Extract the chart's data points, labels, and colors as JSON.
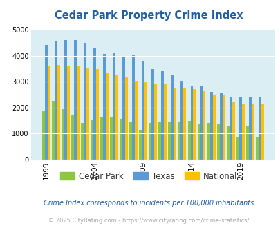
{
  "title": "Cedar Park Property Crime Index",
  "years": [
    1999,
    2000,
    2001,
    2002,
    2003,
    2004,
    2005,
    2006,
    2007,
    2008,
    2009,
    2010,
    2011,
    2012,
    2013,
    2014,
    2015,
    2016,
    2017,
    2018,
    2019,
    2020,
    2021
  ],
  "cedar_park": [
    1850,
    2250,
    1950,
    1700,
    1420,
    1530,
    1620,
    1620,
    1560,
    1460,
    1130,
    1400,
    1430,
    1470,
    1430,
    1500,
    1390,
    1400,
    1390,
    1270,
    870,
    1270,
    870
  ],
  "texas": [
    4400,
    4550,
    4600,
    4600,
    4500,
    4300,
    4080,
    4100,
    4000,
    4020,
    3800,
    3480,
    3400,
    3260,
    3040,
    2840,
    2830,
    2600,
    2580,
    2420,
    2400,
    2390,
    2390
  ],
  "national": [
    3600,
    3650,
    3620,
    3600,
    3520,
    3480,
    3350,
    3260,
    3200,
    3020,
    2970,
    2920,
    2920,
    2760,
    2750,
    2700,
    2620,
    2470,
    2460,
    2230,
    2150,
    2120,
    2120
  ],
  "cedar_park_color": "#8dc63f",
  "texas_color": "#5b9bd5",
  "national_color": "#ffc000",
  "bg_color": "#daeef3",
  "title_color": "#1f5fa6",
  "ylabel_max": 5000,
  "yticks": [
    0,
    1000,
    2000,
    3000,
    4000,
    5000
  ],
  "subtitle": "Crime Index corresponds to incidents per 100,000 inhabitants",
  "footer": "© 2025 CityRating.com - https://www.cityrating.com/crime-statistics/",
  "subtitle_color": "#1f5fa6",
  "footer_color": "#aaaaaa",
  "xtick_years": [
    1999,
    2004,
    2009,
    2014,
    2019
  ]
}
